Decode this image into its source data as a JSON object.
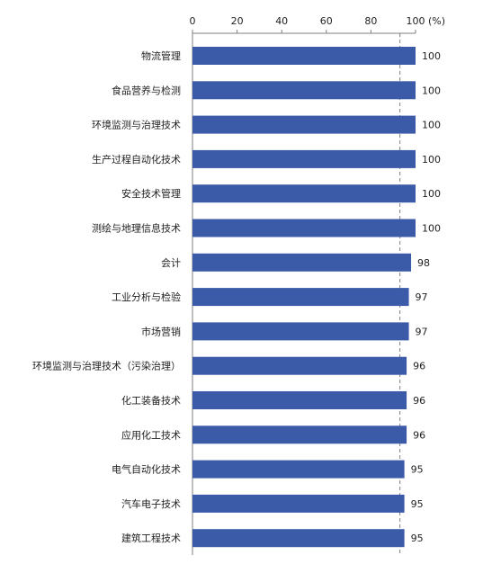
{
  "chart_data": {
    "type": "bar",
    "orientation": "horizontal",
    "categories": [
      "物流管理",
      "食品营养与检测",
      "环境监测与治理技术",
      "生产过程自动化技术",
      "安全技术管理",
      "测绘与地理信息技术",
      "会计",
      "工业分析与检验",
      "市场营销",
      "环境监测与治理技术（污染治理）",
      "化工装备技术",
      "应用化工技术",
      "电气自动化技术",
      "汽车电子技术",
      "建筑工程技术"
    ],
    "values": [
      100,
      100,
      100,
      100,
      100,
      100,
      98,
      97,
      97,
      96,
      96,
      96,
      95,
      95,
      95
    ],
    "value_labels": [
      "100",
      "100",
      "100",
      "100",
      "100",
      "100",
      "98",
      "97",
      "97",
      "96",
      "96",
      "96",
      "95",
      "95",
      "95"
    ],
    "x_ticks": [
      "0",
      "20",
      "40",
      "60",
      "80",
      "100"
    ],
    "x_unit": "(%)",
    "xlim": [
      0,
      100
    ],
    "reference_line": 93,
    "axis_position": "top",
    "grid": false,
    "bar_color": "#3b5ba9"
  }
}
